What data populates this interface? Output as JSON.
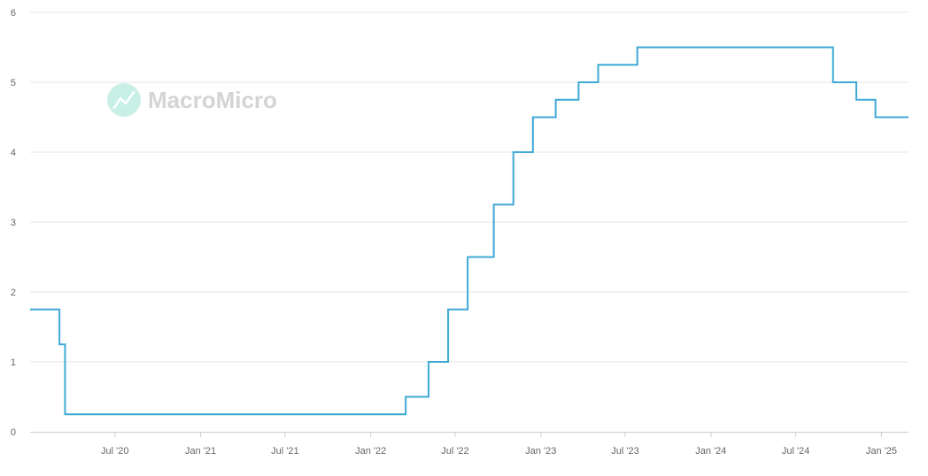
{
  "watermark": {
    "text": "MacroMicro"
  },
  "colors": {
    "series": "#3fa9d6",
    "grid": "#e6e6e6",
    "axis": "#cccccc",
    "watermark_icon": "#c8f0e6"
  },
  "chart_data": {
    "type": "line",
    "step": true,
    "title": "",
    "xlabel": "",
    "ylabel": "",
    "ylim": [
      0,
      6
    ],
    "yticks": [
      0,
      1,
      2,
      3,
      4,
      5,
      6
    ],
    "xlim": [
      "2020-01-01",
      "2025-02-28"
    ],
    "xticks": [
      {
        "date": "2020-07-01",
        "label": "Jul '20"
      },
      {
        "date": "2021-01-01",
        "label": "Jan '21"
      },
      {
        "date": "2021-07-01",
        "label": "Jul '21"
      },
      {
        "date": "2022-01-01",
        "label": "Jan '22"
      },
      {
        "date": "2022-07-01",
        "label": "Jul '22"
      },
      {
        "date": "2023-01-01",
        "label": "Jan '23"
      },
      {
        "date": "2023-07-01",
        "label": "Jul '23"
      },
      {
        "date": "2024-01-01",
        "label": "Jan '24"
      },
      {
        "date": "2024-07-01",
        "label": "Jul '24"
      },
      {
        "date": "2025-01-01",
        "label": "Jan '25"
      }
    ],
    "grid": true,
    "legend": "none",
    "series": [
      {
        "points": [
          {
            "x": "2020-01-01",
            "y": 1.75
          },
          {
            "x": "2020-03-04",
            "y": 1.25
          },
          {
            "x": "2020-03-16",
            "y": 0.25
          },
          {
            "x": "2022-03-17",
            "y": 0.5
          },
          {
            "x": "2022-05-05",
            "y": 1.0
          },
          {
            "x": "2022-06-16",
            "y": 1.75
          },
          {
            "x": "2022-07-28",
            "y": 2.5
          },
          {
            "x": "2022-09-22",
            "y": 3.25
          },
          {
            "x": "2022-11-03",
            "y": 4.0
          },
          {
            "x": "2022-12-15",
            "y": 4.5
          },
          {
            "x": "2023-02-02",
            "y": 4.75
          },
          {
            "x": "2023-03-23",
            "y": 5.0
          },
          {
            "x": "2023-05-04",
            "y": 5.25
          },
          {
            "x": "2023-07-27",
            "y": 5.5
          },
          {
            "x": "2024-09-19",
            "y": 5.0
          },
          {
            "x": "2024-11-08",
            "y": 4.75
          },
          {
            "x": "2024-12-19",
            "y": 4.5
          },
          {
            "x": "2025-02-28",
            "y": 4.5
          }
        ]
      }
    ]
  }
}
